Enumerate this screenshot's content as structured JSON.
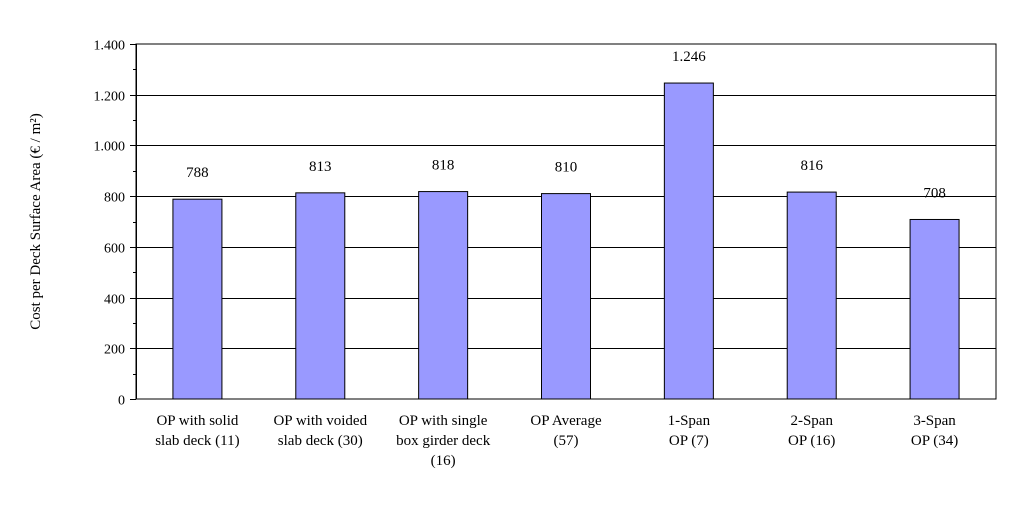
{
  "chart_data": {
    "type": "bar",
    "ylabel": "Cost per Deck Surface Area (€ / m²)",
    "xlabel": "",
    "ylim": [
      0,
      1400
    ],
    "yticks": [
      0,
      200,
      400,
      600,
      800,
      1000,
      1200,
      1400
    ],
    "ytick_labels": [
      "0",
      "200",
      "400",
      "600",
      "800",
      "1.000",
      "1.200",
      "1.400"
    ],
    "grid": "horizontal",
    "categories": [
      [
        "OP with solid",
        "slab deck (11)"
      ],
      [
        "OP with voided",
        "slab deck (30)"
      ],
      [
        "OP with single",
        "box girder deck",
        "(16)"
      ],
      [
        "OP Average",
        "(57)"
      ],
      [
        "1-Span",
        "OP (7)"
      ],
      [
        "2-Span",
        "OP (16)"
      ],
      [
        "3-Span",
        "OP (34)"
      ]
    ],
    "values": [
      788,
      813,
      818,
      810,
      1246,
      816,
      708
    ],
    "data_labels": [
      "788",
      "813",
      "818",
      "810",
      "1.246",
      "816",
      "708"
    ],
    "bar_color": "#9999ff"
  }
}
